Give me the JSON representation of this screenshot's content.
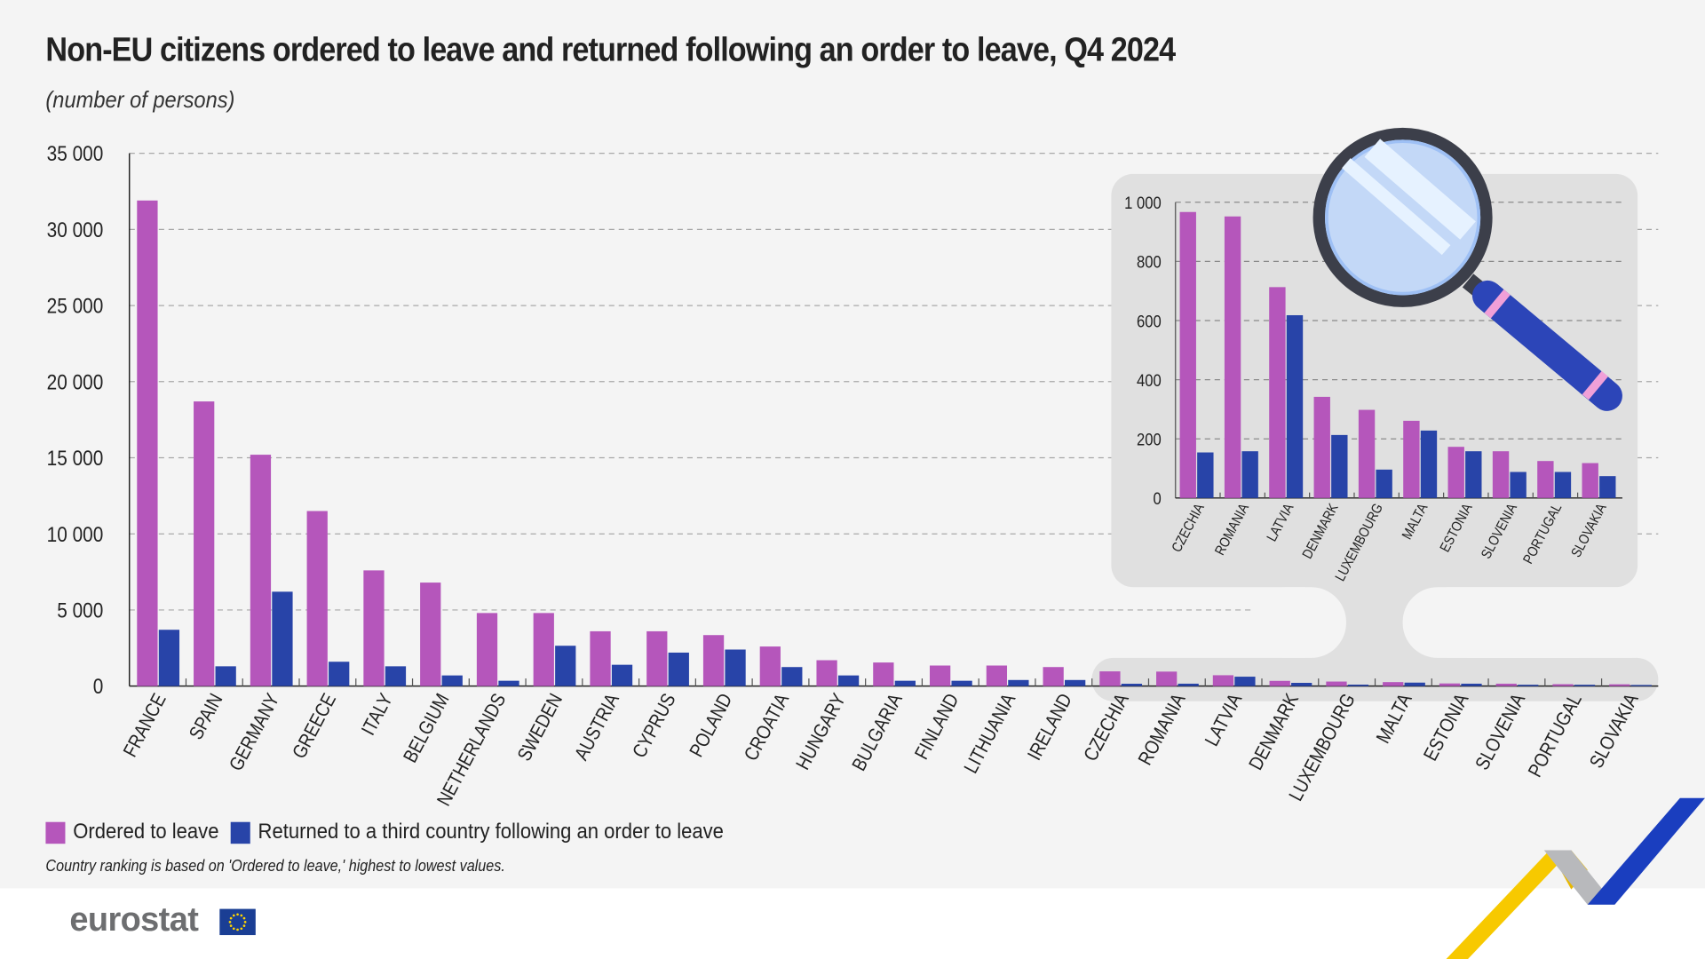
{
  "title": "Non-EU citizens ordered to leave and returned following an order to leave, Q4 2024",
  "subtitle": "(number of persons)",
  "legend": {
    "ordered": "Ordered to leave",
    "returned": "Returned to a third country following an order to leave"
  },
  "note": "Country ranking is based on 'Ordered to leave,' highest to lowest values.",
  "logo": "eurostat",
  "colors": {
    "ordered": "#b556bb",
    "returned": "#2844a8",
    "background": "#f4f4f4",
    "inset_panel": "#e0e0e0"
  },
  "chart_data": [
    {
      "type": "bar",
      "title": "Non-EU citizens ordered to leave and returned following an order to leave, Q4 2024",
      "ylabel": "(number of persons)",
      "ylim": [
        0,
        35000
      ],
      "yticks": [
        "0",
        "5 000",
        "10 000",
        "15 000",
        "20 000",
        "25 000",
        "30 000",
        "35 000"
      ],
      "ytick_values": [
        0,
        5000,
        10000,
        15000,
        20000,
        25000,
        30000,
        35000
      ],
      "grid": true,
      "legend_position": "bottom-left",
      "categories": [
        "FRANCE",
        "SPAIN",
        "GERMANY",
        "GREECE",
        "ITALY",
        "BELGIUM",
        "NETHERLANDS",
        "SWEDEN",
        "AUSTRIA",
        "CYPRUS",
        "POLAND",
        "CROATIA",
        "HUNGARY",
        "BULGARIA",
        "FINLAND",
        "LITHUANIA",
        "IRELAND",
        "CZECHIA",
        "ROMANIA",
        "LATVIA",
        "DENMARK",
        "LUXEMBOURG",
        "MALTA",
        "ESTONIA",
        "SLOVENIA",
        "PORTUGAL",
        "SLOVAKIA"
      ],
      "series": [
        {
          "name": "Ordered to leave",
          "values": [
            31900,
            18700,
            15200,
            11500,
            7600,
            6800,
            4800,
            4800,
            3600,
            3600,
            3350,
            2600,
            1700,
            1550,
            1350,
            1350,
            1250,
            967,
            952,
            713,
            342,
            298,
            261,
            173,
            158,
            125,
            118
          ]
        },
        {
          "name": "Returned to a third country following an order to leave",
          "values": [
            3700,
            1300,
            6200,
            1600,
            1300,
            700,
            350,
            2650,
            1400,
            2200,
            2400,
            1250,
            700,
            350,
            350,
            400,
            400,
            154,
            158,
            618,
            213,
            96,
            228,
            158,
            88,
            88,
            74
          ]
        }
      ]
    },
    {
      "type": "bar",
      "title": "",
      "ylim": [
        0,
        1000
      ],
      "yticks": [
        "0",
        "200",
        "400",
        "600",
        "800",
        "1 000"
      ],
      "ytick_values": [
        0,
        200,
        400,
        600,
        800,
        1000
      ],
      "grid": true,
      "categories": [
        "CZECHIA",
        "ROMANIA",
        "LATVIA",
        "DENMARK",
        "LUXEMBOURG",
        "MALTA",
        "ESTONIA",
        "SLOVENIA",
        "PORTUGAL",
        "SLOVAKIA"
      ],
      "series": [
        {
          "name": "Ordered to leave",
          "values": [
            967,
            952,
            713,
            342,
            298,
            261,
            173,
            158,
            125,
            118
          ]
        },
        {
          "name": "Returned to a third country following an order to leave",
          "values": [
            154,
            158,
            618,
            213,
            96,
            228,
            158,
            88,
            88,
            74
          ]
        }
      ]
    }
  ]
}
